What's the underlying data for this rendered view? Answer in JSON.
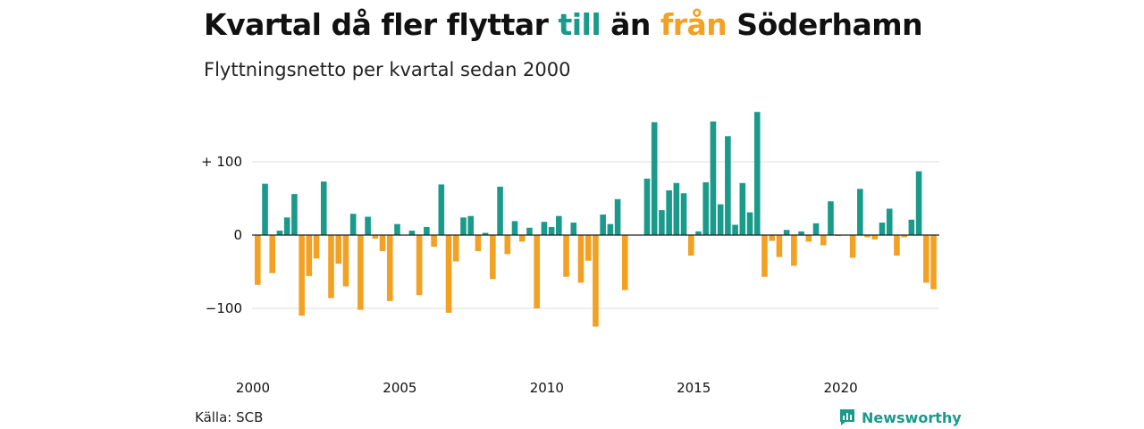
{
  "title": {
    "part1": "Kvartal då fler flyttar ",
    "word_in": "till",
    "part2": " än ",
    "word_out": "från",
    "part3": " Söderhamn"
  },
  "subtitle": "Flyttningsnetto per kvartal sedan 2000",
  "source": "Källa: SCB",
  "brand": {
    "name": "Newsworthy",
    "icon": "newsworthy-logo-icon"
  },
  "colors": {
    "positive": "#1a9a8a",
    "negative": "#f2a122",
    "grid": "#dddddd"
  },
  "chart_data": {
    "type": "bar",
    "x_start": "2000 Q1",
    "x_ticks": [
      "2000",
      "2005",
      "2010",
      "2015",
      "2020"
    ],
    "y_ticks": [
      {
        "value": 100,
        "label": "+ 100"
      },
      {
        "value": 0,
        "label": "0"
      },
      {
        "value": -100,
        "label": "−100"
      }
    ],
    "ylim": [
      -130,
      170
    ],
    "grid": true,
    "values": [
      -68,
      70,
      -52,
      6,
      24,
      56,
      -110,
      -56,
      -32,
      73,
      -86,
      -39,
      -70,
      29,
      -102,
      25,
      -5,
      -22,
      -90,
      15,
      0,
      6,
      -82,
      11,
      -16,
      69,
      -106,
      -36,
      24,
      26,
      -22,
      3,
      -60,
      66,
      -26,
      19,
      -9,
      10,
      -100,
      18,
      11,
      26,
      -57,
      17,
      -65,
      -35,
      -125,
      28,
      15,
      49,
      -75,
      0,
      0,
      77,
      154,
      34,
      61,
      71,
      57,
      -28,
      5,
      72,
      155,
      42,
      135,
      14,
      71,
      31,
      168,
      -57,
      -8,
      -30,
      7,
      -42,
      5,
      -9,
      16,
      -14,
      46,
      -1,
      0,
      -31,
      63,
      -3,
      -6,
      17,
      36,
      -28,
      -3,
      21,
      87,
      -65,
      -74
    ]
  }
}
